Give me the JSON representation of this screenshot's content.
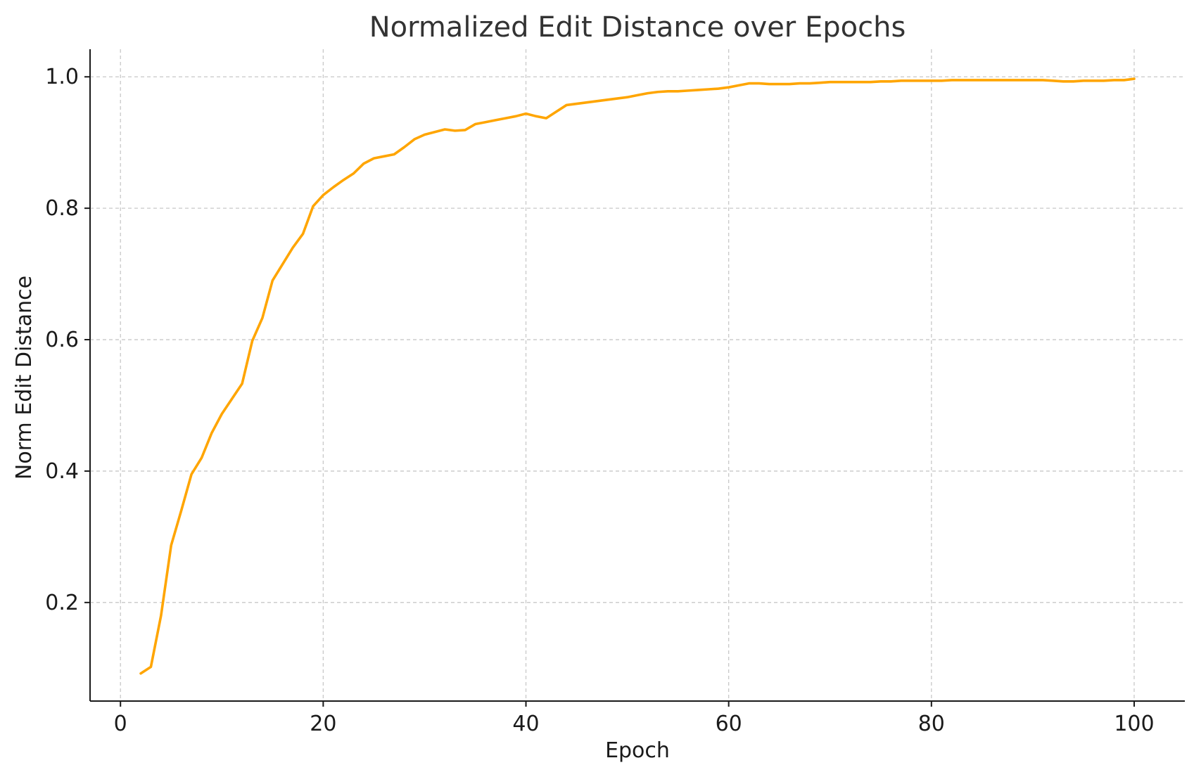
{
  "chart_data": {
    "type": "line",
    "title": "Normalized Edit Distance over Epochs",
    "xlabel": "Epoch",
    "ylabel": "Norm Edit Distance",
    "xlim": [
      -3,
      105
    ],
    "ylim": [
      0.05,
      1.042
    ],
    "xticks": [
      0,
      20,
      40,
      60,
      80,
      100
    ],
    "xtick_labels": [
      "0",
      "20",
      "40",
      "60",
      "80",
      "100"
    ],
    "yticks": [
      0.2,
      0.4,
      0.6,
      0.8,
      1.0
    ],
    "ytick_labels": [
      "0.2",
      "0.4",
      "0.6",
      "0.8",
      "1.0"
    ],
    "grid": true,
    "line_color": "#ffa500",
    "series": [
      {
        "x": [
          2,
          3,
          4,
          5,
          6,
          7,
          8,
          9,
          10,
          11,
          12,
          13,
          14,
          15,
          16,
          17,
          18,
          19,
          20,
          21,
          22,
          23,
          24,
          25,
          26,
          27,
          28,
          29,
          30,
          31,
          32,
          33,
          34,
          35,
          36,
          37,
          38,
          39,
          40,
          41,
          42,
          43,
          44,
          45,
          46,
          47,
          48,
          49,
          50,
          51,
          52,
          53,
          54,
          55,
          56,
          57,
          58,
          59,
          60,
          61,
          62,
          63,
          64,
          65,
          66,
          67,
          68,
          69,
          70,
          71,
          72,
          73,
          74,
          75,
          76,
          77,
          78,
          79,
          80,
          81,
          82,
          83,
          84,
          85,
          86,
          87,
          88,
          89,
          90,
          91,
          92,
          93,
          94,
          95,
          96,
          97,
          98,
          99,
          100
        ],
        "values": [
          0.092,
          0.102,
          0.18,
          0.287,
          0.34,
          0.395,
          0.42,
          0.458,
          0.487,
          0.51,
          0.533,
          0.598,
          0.633,
          0.69,
          0.715,
          0.74,
          0.761,
          0.803,
          0.82,
          0.832,
          0.843,
          0.853,
          0.868,
          0.876,
          0.879,
          0.882,
          0.893,
          0.905,
          0.912,
          0.916,
          0.92,
          0.918,
          0.919,
          0.928,
          0.931,
          0.934,
          0.937,
          0.94,
          0.944,
          0.94,
          0.937,
          0.947,
          0.957,
          0.959,
          0.961,
          0.963,
          0.965,
          0.967,
          0.969,
          0.972,
          0.975,
          0.977,
          0.978,
          0.978,
          0.979,
          0.98,
          0.981,
          0.982,
          0.984,
          0.987,
          0.99,
          0.99,
          0.989,
          0.989,
          0.989,
          0.99,
          0.99,
          0.991,
          0.992,
          0.992,
          0.992,
          0.992,
          0.992,
          0.993,
          0.993,
          0.994,
          0.994,
          0.994,
          0.994,
          0.994,
          0.995,
          0.995,
          0.995,
          0.995,
          0.995,
          0.995,
          0.995,
          0.995,
          0.995,
          0.995,
          0.994,
          0.993,
          0.993,
          0.994,
          0.994,
          0.994,
          0.995,
          0.995,
          0.997
        ]
      }
    ]
  }
}
